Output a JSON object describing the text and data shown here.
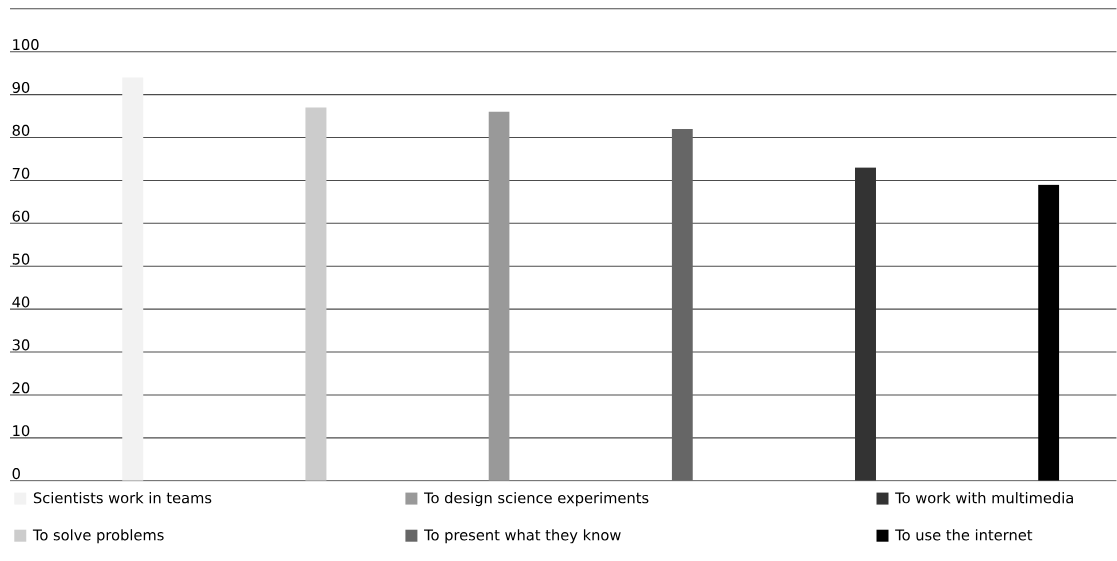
{
  "chart_data": {
    "type": "bar",
    "categories": [
      null,
      null,
      null,
      null,
      null,
      null
    ],
    "series": [
      {
        "name": "Scientists work in teams",
        "color": "#f2f2f2",
        "values": [
          94,
          null,
          null,
          null,
          null,
          null
        ]
      },
      {
        "name": "To solve problems",
        "color": "#cccccc",
        "values": [
          null,
          87,
          null,
          null,
          null,
          null
        ]
      },
      {
        "name": "To design science experiments",
        "color": "#999999",
        "values": [
          null,
          null,
          86,
          null,
          null,
          null
        ]
      },
      {
        "name": "To present what they know",
        "color": "#666666",
        "values": [
          null,
          null,
          null,
          82,
          null,
          null
        ]
      },
      {
        "name": "To work with multimedia",
        "color": "#333333",
        "values": [
          null,
          null,
          null,
          null,
          73,
          null
        ]
      },
      {
        "name": "To use the internet",
        "color": "#000000",
        "values": [
          null,
          null,
          null,
          null,
          null,
          69
        ]
      }
    ],
    "ylim": [
      0,
      110
    ],
    "yticks": [
      0,
      10,
      20,
      30,
      40,
      50,
      60,
      70,
      80,
      90,
      100,
      {
        "value": 110,
        "label": null
      }
    ],
    "grid": "y",
    "legend": "bottom"
  }
}
